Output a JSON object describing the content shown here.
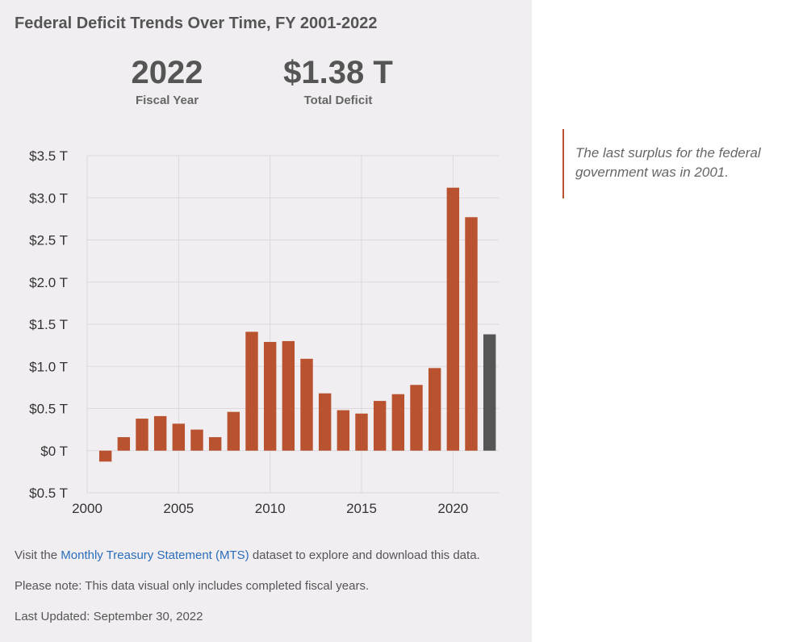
{
  "title": "Federal Deficit Trends Over Time, FY 2001-2022",
  "stats": {
    "year_value": "2022",
    "year_label": "Fiscal Year",
    "deficit_value": "$1.38 T",
    "deficit_label": "Total Deficit"
  },
  "footer": {
    "line1_prefix": "Visit the ",
    "line1_link": "Monthly Treasury Statement (MTS)",
    "line1_suffix": " dataset to explore and download this data.",
    "line2": "Please note: This data visual only includes completed fiscal years.",
    "line3": "Last Updated: September 30, 2022"
  },
  "callout": {
    "text": "The last surplus for the federal government was in 2001."
  },
  "colors": {
    "bar": "#b9532f",
    "highlight_bar": "#555555",
    "grid": "#dcd8dc",
    "panel_bg": "#f1eef1"
  },
  "chart_data": {
    "type": "bar",
    "title": "Federal Deficit Trends Over Time, FY 2001-2022",
    "xlabel": "",
    "ylabel": "",
    "x": [
      2001,
      2002,
      2003,
      2004,
      2005,
      2006,
      2007,
      2008,
      2009,
      2010,
      2011,
      2012,
      2013,
      2014,
      2015,
      2016,
      2017,
      2018,
      2019,
      2020,
      2021,
      2022
    ],
    "values": [
      -0.13,
      0.16,
      0.38,
      0.41,
      0.32,
      0.25,
      0.16,
      0.46,
      1.41,
      1.29,
      1.3,
      1.09,
      0.68,
      0.48,
      0.44,
      0.59,
      0.67,
      0.78,
      0.98,
      3.12,
      2.77,
      1.38
    ],
    "highlight": 2022,
    "ylim": [
      -0.5,
      3.5
    ],
    "xlim": [
      2000,
      2022.5
    ],
    "yticks": [
      3.5,
      3.0,
      2.5,
      2.0,
      1.5,
      1.0,
      0.5,
      0,
      -0.5
    ],
    "ytick_labels": [
      "$3.5 T",
      "$3.0 T",
      "$2.5 T",
      "$2.0 T",
      "$1.5 T",
      "$1.0 T",
      "$0.5 T",
      "$0 T",
      "$0.5 T"
    ],
    "xticks": [
      2000,
      2005,
      2010,
      2015,
      2020
    ],
    "xtick_labels": [
      "2000",
      "2005",
      "2010",
      "2015",
      "2020"
    ],
    "grid": true,
    "legend": "none"
  }
}
